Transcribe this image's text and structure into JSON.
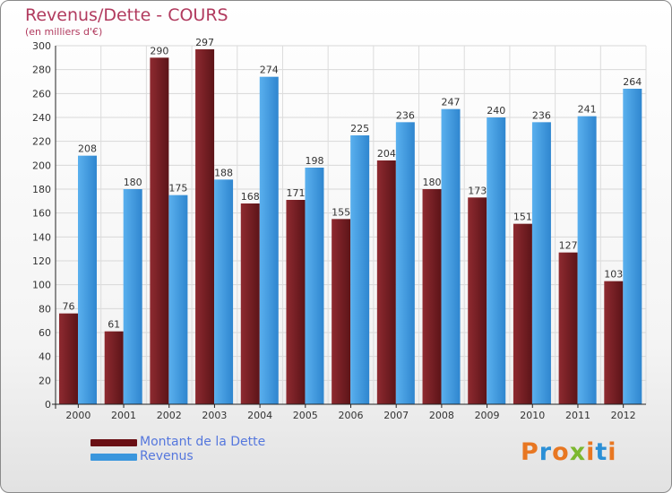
{
  "header": {
    "title": "Revenus/Dette - COURS",
    "subtitle": "(en milliers d'€)"
  },
  "chart_data": {
    "type": "bar",
    "categories": [
      "2000",
      "2001",
      "2002",
      "2003",
      "2004",
      "2005",
      "2006",
      "2007",
      "2008",
      "2009",
      "2010",
      "2011",
      "2012"
    ],
    "series": [
      {
        "name": "Montant de la Dette",
        "values": [
          76,
          61,
          290,
          297,
          168,
          171,
          155,
          204,
          180,
          173,
          151,
          127,
          103
        ],
        "color": "#7a1f25"
      },
      {
        "name": "Revenus",
        "values": [
          208,
          180,
          175,
          188,
          274,
          198,
          225,
          236,
          247,
          240,
          236,
          241,
          264
        ],
        "color": "#3a96dd"
      }
    ],
    "ylim": [
      0,
      300
    ],
    "yticks": [
      0,
      20,
      40,
      60,
      80,
      100,
      120,
      140,
      160,
      180,
      200,
      220,
      240,
      260,
      280,
      300
    ],
    "grid": true,
    "legend": "bottom-left"
  },
  "logo": {
    "text": "Proxiti",
    "letter_colors": [
      "#e87722",
      "#2a8fd6",
      "#e87722",
      "#7cb82f",
      "#e87722",
      "#2a8fd6",
      "#e87722"
    ]
  }
}
